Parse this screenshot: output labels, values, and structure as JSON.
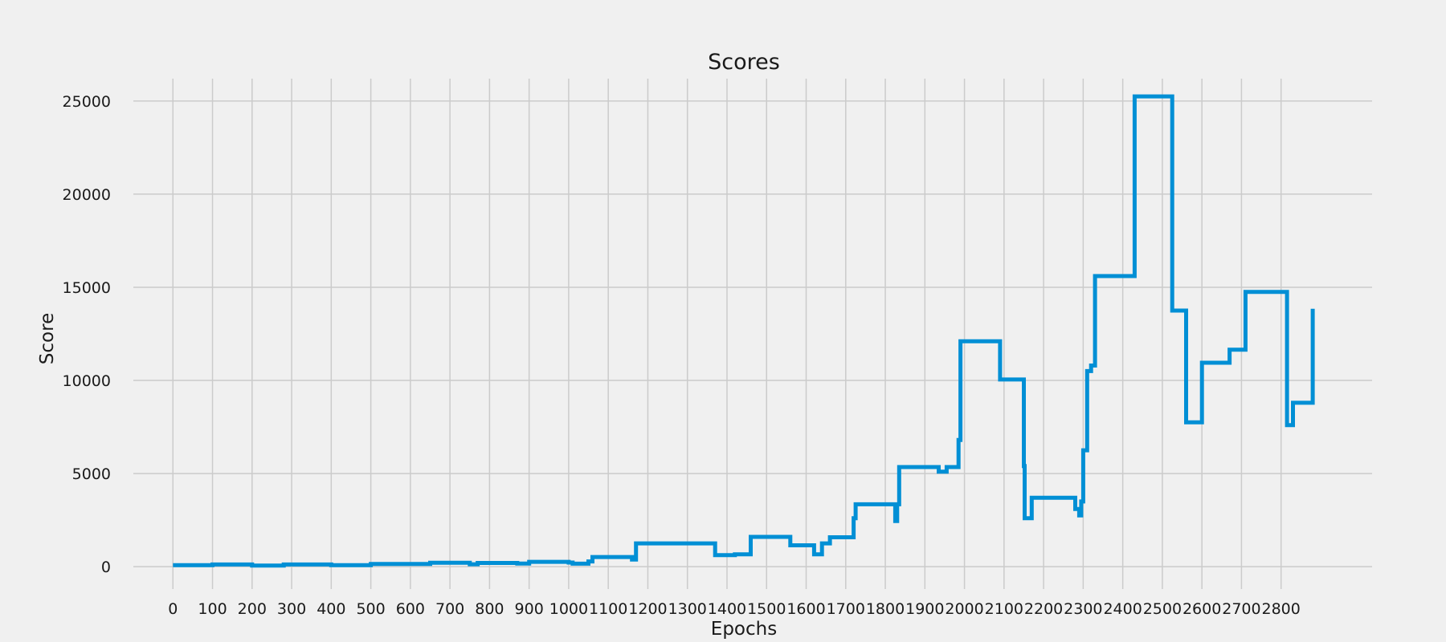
{
  "chart_data": {
    "type": "line",
    "title": "Scores",
    "xlabel": "Epochs",
    "ylabel": "Score",
    "xlim": [
      -100,
      3030
    ],
    "ylim": [
      -1200,
      26200
    ],
    "xticks": [
      0,
      100,
      200,
      300,
      400,
      500,
      600,
      700,
      800,
      900,
      1000,
      1100,
      1200,
      1300,
      1400,
      1500,
      1600,
      1700,
      1800,
      1900,
      2000,
      2100,
      2200,
      2300,
      2400,
      2500,
      2600,
      2700,
      2800
    ],
    "yticks": [
      0,
      5000,
      10000,
      15000,
      20000,
      25000
    ],
    "grid": true,
    "line_color": "#008fd5",
    "series": [
      {
        "step": "post",
        "x": [
          0,
          100,
          200,
          280,
          400,
          500,
          650,
          750,
          770,
          870,
          900,
          1000,
          1010,
          1050,
          1060,
          1160,
          1170,
          1370,
          1420,
          1460,
          1560,
          1620,
          1640,
          1660,
          1720,
          1725,
          1825,
          1830,
          1835,
          1935,
          1955,
          1985,
          1990,
          2090,
          2150,
          2152,
          2170,
          2280,
          2290,
          2295,
          2300,
          2310,
          2320,
          2330,
          2345,
          2430,
          2525,
          2560,
          2600,
          2670,
          2710,
          2815,
          2830,
          2880
        ],
        "values": [
          80,
          120,
          60,
          120,
          80,
          150,
          210,
          130,
          200,
          170,
          260,
          220,
          160,
          280,
          520,
          380,
          1250,
          620,
          660,
          1600,
          1150,
          660,
          1250,
          1580,
          2600,
          3350,
          2450,
          3350,
          5350,
          5100,
          5350,
          6800,
          12100,
          10050,
          5400,
          2600,
          3700,
          3100,
          2750,
          3500,
          6250,
          10500,
          10800,
          15600,
          15600,
          25250,
          13750,
          7750,
          10950,
          11650,
          14750,
          7600,
          8800,
          13850
        ]
      }
    ]
  }
}
